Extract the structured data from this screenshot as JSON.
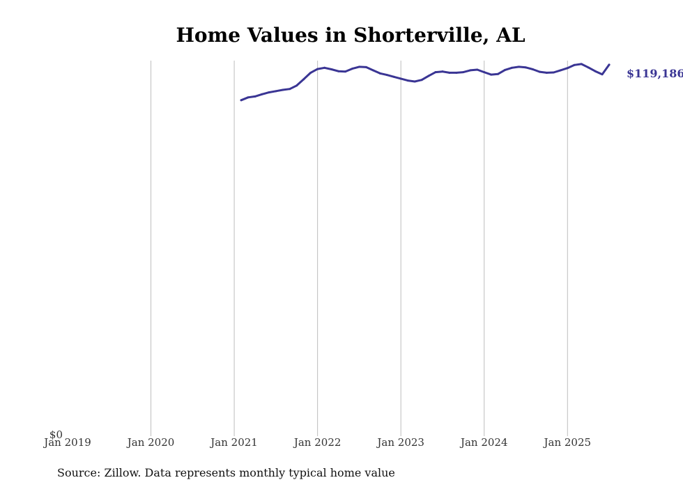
{
  "chart_data": {
    "type": "line",
    "title": "Home Values in Shorterville, AL",
    "xlabel": "",
    "ylabel": "",
    "x_ticks": [
      "Jan 2019",
      "Jan 2020",
      "Jan 2021",
      "Jan 2022",
      "Jan 2023",
      "Jan 2024",
      "Jan 2025"
    ],
    "y_ticks": [
      {
        "value": 0,
        "label": "$0"
      }
    ],
    "y_domain_min": 0,
    "y_domain_max": 120500,
    "xlim": [
      "2019-01",
      "2025-08"
    ],
    "grid": "vertical",
    "end_label": "$119,186",
    "color": "#3a3594",
    "source": "Source: Zillow. Data represents monthly typical home value",
    "series": [
      {
        "x": [
          "2021-02",
          "2021-03",
          "2021-04",
          "2021-05",
          "2021-06",
          "2021-07",
          "2021-08",
          "2021-09",
          "2021-10",
          "2021-11",
          "2021-12",
          "2022-01",
          "2022-02",
          "2022-03",
          "2022-04",
          "2022-05",
          "2022-06",
          "2022-07",
          "2022-08",
          "2022-09",
          "2022-10",
          "2022-11",
          "2022-12",
          "2023-01",
          "2023-02",
          "2023-03",
          "2023-04",
          "2023-05",
          "2023-06",
          "2023-07",
          "2023-08",
          "2023-09",
          "2023-10",
          "2023-11",
          "2023-12",
          "2024-01",
          "2024-02",
          "2024-03",
          "2024-04",
          "2024-05",
          "2024-06",
          "2024-07",
          "2024-08",
          "2024-09",
          "2024-10",
          "2024-11",
          "2024-12",
          "2025-01",
          "2025-02",
          "2025-03",
          "2025-04",
          "2025-05",
          "2025-06",
          "2025-07"
        ],
        "values": [
          107800,
          108700,
          109000,
          109700,
          110300,
          110700,
          111100,
          111400,
          112500,
          114500,
          116600,
          117800,
          118200,
          117700,
          117100,
          117000,
          117900,
          118500,
          118400,
          117400,
          116400,
          115900,
          115300,
          114700,
          114100,
          113800,
          114300,
          115600,
          116800,
          117000,
          116600,
          116600,
          116800,
          117400,
          117600,
          116800,
          116000,
          116200,
          117500,
          118200,
          118500,
          118300,
          117700,
          116900,
          116600,
          116700,
          117400,
          118100,
          119100,
          119400,
          118300,
          117100,
          116100,
          119186
        ]
      }
    ]
  }
}
